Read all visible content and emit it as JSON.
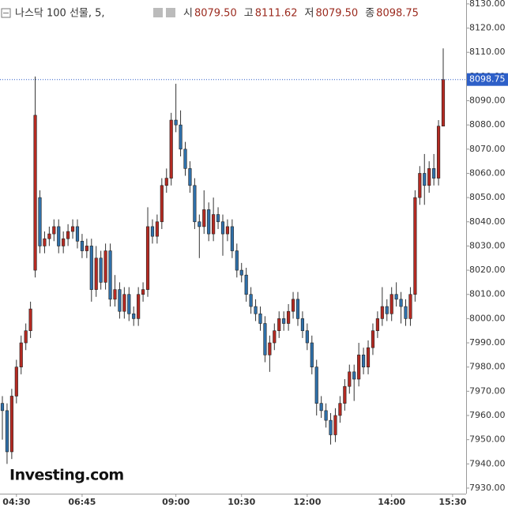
{
  "chart_data": {
    "type": "candlestick",
    "title": "나스닥 100 선물, 5,",
    "header": [
      {
        "label": "시",
        "value": "8079.50"
      },
      {
        "label": "고",
        "value": "8111.62"
      },
      {
        "label": "저",
        "value": "8079.50"
      },
      {
        "label": "종",
        "value": "8098.75"
      }
    ],
    "watermark": "Investing.com",
    "up_color": "#b52a22",
    "down_color": "#2f70aa",
    "last_line_color": "#2d5fc8",
    "open": [
      7965,
      7962,
      7945,
      7968,
      7980,
      7990,
      7995,
      8020,
      8050,
      8030,
      8033,
      8035,
      8038,
      8030,
      8033,
      8036,
      8038,
      8032,
      8028,
      8030,
      8012,
      8025,
      8015,
      8028,
      8008,
      8012,
      8003,
      8010,
      8002,
      8000,
      8010,
      8012,
      8038,
      8034,
      8040,
      8055,
      8058,
      8082,
      8080,
      8070,
      8062,
      8055,
      8040,
      8038,
      8045,
      8035,
      8043,
      8040,
      8035,
      8038,
      8028,
      8020,
      8018,
      8010,
      8005,
      8002,
      7998,
      7985,
      7990,
      7995,
      8000,
      7998,
      8003,
      8008,
      8000,
      7995,
      7990,
      7980,
      7965,
      7962,
      7958,
      7952,
      7960,
      7965,
      7972,
      7978,
      7975,
      7985,
      7980,
      7988,
      7995,
      8000,
      8005,
      8002,
      8010,
      8008,
      8005,
      8000,
      8010,
      8050,
      8060,
      8055,
      8062,
      8058,
      8079.5
    ],
    "high": [
      7968,
      7965,
      7971,
      7983,
      7993,
      7998,
      8007,
      8100,
      8053,
      8036,
      8038,
      8041,
      8041,
      8036,
      8039,
      8041,
      8041,
      8035,
      8033,
      8033,
      8030,
      8028,
      8031,
      8031,
      8018,
      8015,
      8013,
      8013,
      8005,
      8013,
      8015,
      8046,
      8041,
      8043,
      8058,
      8062,
      8085,
      8097,
      8086,
      8073,
      8065,
      8058,
      8043,
      8053,
      8048,
      8050,
      8046,
      8043,
      8041,
      8041,
      8031,
      8023,
      8021,
      8013,
      8008,
      8005,
      8001,
      7993,
      7998,
      8003,
      8003,
      8006,
      8011,
      8011,
      8003,
      7998,
      7993,
      7983,
      7968,
      7965,
      7961,
      7963,
      7968,
      7975,
      7981,
      7981,
      7990,
      7988,
      7991,
      7998,
      8003,
      8013,
      8008,
      8013,
      8015,
      8011,
      8008,
      8013,
      8053,
      8063,
      8068,
      8065,
      8068,
      8082,
      8111.62
    ],
    "low": [
      7950,
      7940,
      7942,
      7965,
      7977,
      7987,
      7992,
      8017,
      8027,
      8027,
      8030,
      8032,
      8027,
      8027,
      8030,
      8033,
      8029,
      8025,
      8025,
      8007,
      8009,
      8012,
      8012,
      8005,
      8005,
      8000,
      8000,
      7999,
      7997,
      7997,
      8007,
      8009,
      8031,
      8031,
      8037,
      8052,
      8055,
      8077,
      8067,
      8059,
      8052,
      8037,
      8025,
      8035,
      8032,
      8032,
      8037,
      8026,
      8032,
      8025,
      8017,
      8015,
      8007,
      8002,
      7999,
      7995,
      7982,
      7978,
      7987,
      7992,
      7995,
      7995,
      8000,
      7997,
      7992,
      7987,
      7977,
      7960,
      7959,
      7955,
      7948,
      7949,
      7957,
      7962,
      7969,
      7966,
      7972,
      7977,
      7977,
      7985,
      7992,
      7997,
      7999,
      7999,
      8005,
      7998,
      7997,
      7997,
      8007,
      8047,
      8047,
      8052,
      8055,
      8055,
      8079.5
    ],
    "close": [
      7962,
      7945,
      7968,
      7980,
      7990,
      7995,
      8004,
      8084,
      8030,
      8033,
      8035,
      8038,
      8030,
      8033,
      8036,
      8038,
      8032,
      8028,
      8030,
      8012,
      8025,
      8015,
      8028,
      8008,
      8012,
      8003,
      8010,
      8002,
      8000,
      8010,
      8012,
      8038,
      8034,
      8040,
      8055,
      8058,
      8082,
      8080,
      8070,
      8062,
      8055,
      8040,
      8038,
      8045,
      8035,
      8043,
      8040,
      8035,
      8038,
      8028,
      8020,
      8018,
      8010,
      8005,
      8002,
      7998,
      7985,
      7990,
      7995,
      8000,
      7998,
      8003,
      8008,
      8000,
      7995,
      7990,
      7980,
      7965,
      7962,
      7958,
      7952,
      7960,
      7965,
      7972,
      7978,
      7975,
      7985,
      7980,
      7988,
      7995,
      8000,
      8005,
      8002,
      8010,
      8008,
      8005,
      8000,
      8010,
      8050,
      8060,
      8055,
      8062,
      8058,
      8079.5,
      8098.75
    ],
    "xticks": [
      {
        "value": 3,
        "label": "04:30"
      },
      {
        "value": 17,
        "label": "06:45"
      },
      {
        "value": 37,
        "label": "09:00"
      },
      {
        "value": 51,
        "label": "10:30"
      },
      {
        "value": 65,
        "label": "12:00"
      },
      {
        "value": 83,
        "label": "14:00"
      },
      {
        "value": 96,
        "label": "15:30"
      }
    ],
    "ylim": [
      7927.7,
      8131.6
    ],
    "yticks": [
      {
        "value": 7930,
        "label": "7930.00"
      },
      {
        "value": 7940,
        "label": "7940.00"
      },
      {
        "value": 7950,
        "label": "7950.00"
      },
      {
        "value": 7960,
        "label": "7960.00"
      },
      {
        "value": 7970,
        "label": "7970.00"
      },
      {
        "value": 7980,
        "label": "7980.00"
      },
      {
        "value": 7990,
        "label": "7990.00"
      },
      {
        "value": 8000,
        "label": "8000.00"
      },
      {
        "value": 8010,
        "label": "8010.00"
      },
      {
        "value": 8020,
        "label": "8020.00"
      },
      {
        "value": 8030,
        "label": "8030.00"
      },
      {
        "value": 8040,
        "label": "8040.00"
      },
      {
        "value": 8050,
        "label": "8050.00"
      },
      {
        "value": 8060,
        "label": "8060.00"
      },
      {
        "value": 8070,
        "label": "8070.00"
      },
      {
        "value": 8080,
        "label": "8080.00"
      },
      {
        "value": 8090,
        "label": "8090.00"
      },
      {
        "value": 8100,
        "label": "8100.00"
      },
      {
        "value": 8110,
        "label": "8110.00"
      },
      {
        "value": 8120,
        "label": "8120.00"
      },
      {
        "value": 8130,
        "label": "8130.00"
      }
    ],
    "grid": false,
    "last_price_line": true
  }
}
